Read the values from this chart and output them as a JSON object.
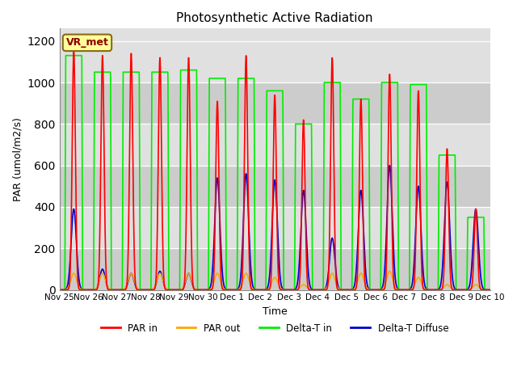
{
  "title": "Photosynthetic Active Radiation",
  "ylabel": "PAR (umol/m2/s)",
  "xlabel": "Time",
  "ylim": [
    0,
    1260
  ],
  "yticks": [
    0,
    200,
    400,
    600,
    800,
    1000,
    1200
  ],
  "xtick_labels": [
    "Nov 25",
    "Nov 26",
    "Nov 27",
    "Nov 28",
    "Nov 29",
    "Nov 30",
    "Dec 1",
    "Dec 2",
    "Dec 3",
    "Dec 4",
    "Dec 5",
    "Dec 6",
    "Dec 7",
    "Dec 8",
    "Dec 9",
    "Dec 10"
  ],
  "bg_color": "#e0e0e0",
  "band_colors": [
    "#cccccc",
    "#e0e0e0"
  ],
  "fig_bg": "#ffffff",
  "colors": {
    "PAR in": "#ff0000",
    "PAR out": "#ffa500",
    "Delta-T in": "#00ee00",
    "Delta-T Diffuse": "#0000cc"
  },
  "vr_met_label": "VR_met",
  "day_peaks": {
    "PAR_in": [
      1160,
      1130,
      1140,
      1120,
      1120,
      910,
      1130,
      940,
      820,
      1120,
      920,
      1040,
      960,
      680,
      390
    ],
    "PAR_out": [
      80,
      80,
      80,
      80,
      80,
      80,
      80,
      60,
      25,
      80,
      80,
      90,
      60,
      25,
      25
    ],
    "Delta_T_in": [
      1130,
      1050,
      1050,
      1050,
      1060,
      1020,
      1020,
      960,
      800,
      1000,
      920,
      1000,
      990,
      650,
      350
    ],
    "Delta_T_dif": [
      390,
      100,
      80,
      90,
      80,
      540,
      560,
      530,
      480,
      250,
      480,
      600,
      500,
      520,
      390
    ]
  },
  "n_days": 15,
  "pts_per_day": 200
}
